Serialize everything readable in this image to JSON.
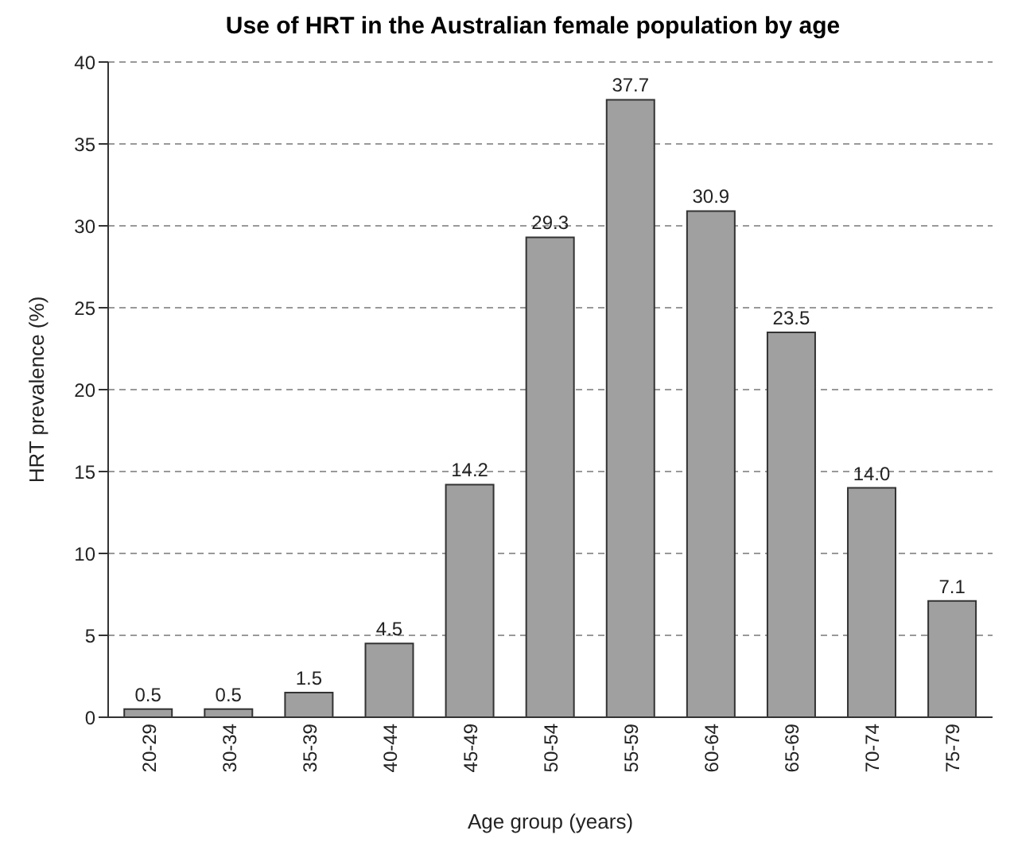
{
  "chart_data": {
    "type": "bar",
    "title": "Use of HRT in the Australian female population by age",
    "xlabel": "Age group (years)",
    "ylabel": "HRT prevalence (%)",
    "categories": [
      "20-29",
      "30-34",
      "35-39",
      "40-44",
      "45-49",
      "50-54",
      "55-59",
      "60-64",
      "65-69",
      "70-74",
      "75-79"
    ],
    "values": [
      0.5,
      0.5,
      1.5,
      4.5,
      14.2,
      29.3,
      37.7,
      30.9,
      23.5,
      14.0,
      7.1
    ],
    "value_labels": [
      "0.5",
      "0.5",
      "1.5",
      "4.5",
      "14.2",
      "29.3",
      "37.7",
      "30.9",
      "23.5",
      "14.0",
      "7.1"
    ],
    "color": "#a0a0a0",
    "ylim": [
      0,
      40
    ],
    "yticks": [
      0,
      5,
      10,
      15,
      20,
      25,
      30,
      35,
      40
    ],
    "grid": "y",
    "legend": false
  }
}
